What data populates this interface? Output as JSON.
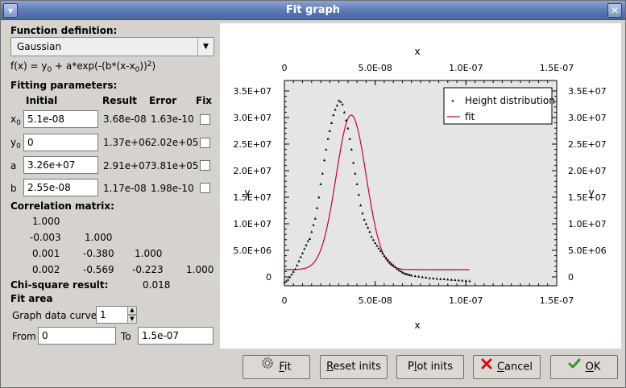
{
  "window": {
    "title": "Fit graph"
  },
  "function_definition": {
    "heading": "Function definition:",
    "selected": "Gaussian",
    "formula": {
      "prefix": "f(x) = y",
      "s1": "0",
      "mid": " + a*exp(-(b*(x-x",
      "s2": "0",
      "end": "))",
      "sup": "2",
      "close": ")"
    }
  },
  "fitting_parameters": {
    "heading": "Fitting parameters:",
    "columns": {
      "initial": "Initial",
      "result": "Result",
      "error": "Error",
      "fix": "Fix"
    },
    "rows": [
      {
        "name": "x",
        "sub": "0",
        "initial": "5.1e-08",
        "result": "3.68e-08",
        "error": "1.63e-10"
      },
      {
        "name": "y",
        "sub": "0",
        "initial": "0",
        "result": "1.37e+06",
        "error": "2.02e+05"
      },
      {
        "name": "a",
        "sub": "",
        "initial": "3.26e+07",
        "result": "2.91e+07",
        "error": "3.81e+05"
      },
      {
        "name": "b",
        "sub": "",
        "initial": "2.55e-08",
        "result": "1.17e-08",
        "error": "1.98e-10"
      }
    ]
  },
  "correlation": {
    "heading": "Correlation matrix:",
    "rows": [
      [
        "1.000"
      ],
      [
        "-0.003",
        "1.000"
      ],
      [
        "0.001",
        "-0.380",
        "1.000"
      ],
      [
        "0.002",
        "-0.569",
        "-0.223",
        "1.000"
      ]
    ]
  },
  "chisquare": {
    "label": "Chi-square result:",
    "value": "0.018"
  },
  "fit_area": {
    "heading": "Fit area",
    "curve_label": "Graph data curve",
    "curve_value": "1",
    "from_label": "From",
    "from_value": "0",
    "to_label": "To",
    "to_value": "1.5e-07"
  },
  "buttons": {
    "fit": {
      "u": "F",
      "rest": "it"
    },
    "reset": {
      "u": "R",
      "rest": "eset inits"
    },
    "plot": {
      "pre": "P",
      "u": "l",
      "rest": "ot inits"
    },
    "cancel": {
      "u": "C",
      "rest": "ancel"
    },
    "ok": {
      "u": "O",
      "rest": "K"
    }
  },
  "icons": {
    "fit": "gear-icon",
    "cancel": "red-x-icon",
    "ok": "green-check-icon"
  },
  "colors": {
    "fit_curve": "#cc0033",
    "plot_bg": "#e5e5e5",
    "titlebar": "#5a78b4"
  },
  "chart_data": {
    "type": "scatter",
    "xlabel": "x",
    "ylabel": "y",
    "xlim": [
      0,
      1.5e-07
    ],
    "ylim": [
      0,
      35000000.0
    ],
    "x_ticks": [
      "0",
      "5.0E-08",
      "1.0E-07",
      "1.5E-07"
    ],
    "y_ticks": [
      "0",
      "5.0E+06",
      "1.0E+07",
      "1.5E+07",
      "2.0E+07",
      "2.5E+07",
      "3.0E+07",
      "3.5E+07"
    ],
    "legend": {
      "position": "top-right",
      "entries": [
        "Height distribution",
        "fit"
      ]
    },
    "grid": false,
    "series": [
      {
        "name": "Height distribution",
        "mode": "points",
        "x": [
          0,
          1e-09,
          2e-09,
          3e-09,
          4e-09,
          5e-09,
          6e-09,
          7e-09,
          8e-09,
          9e-09,
          1e-08,
          1.1e-08,
          1.2e-08,
          1.3e-08,
          1.4e-08,
          1.5e-08,
          1.6e-08,
          1.7e-08,
          1.8e-08,
          1.9e-08,
          2e-08,
          2.1e-08,
          2.2e-08,
          2.3e-08,
          2.4e-08,
          2.5e-08,
          2.6e-08,
          2.7e-08,
          2.8e-08,
          2.9e-08,
          3e-08,
          3.1e-08,
          3.2e-08,
          3.3e-08,
          3.4e-08,
          3.5e-08,
          3.6e-08,
          3.7e-08,
          3.8e-08,
          3.9e-08,
          4e-08,
          4.1e-08,
          4.2e-08,
          4.3e-08,
          4.4e-08,
          4.5e-08,
          4.6e-08,
          4.7e-08,
          4.8e-08,
          4.9e-08,
          5e-08,
          5.1e-08,
          5.2e-08,
          5.3e-08,
          5.4e-08,
          5.5e-08,
          5.6e-08,
          5.7e-08,
          5.8e-08,
          5.9e-08,
          6e-08,
          6.1e-08,
          6.2e-08,
          6.3e-08,
          6.4e-08,
          6.5e-08,
          6.6e-08,
          6.7e-08,
          6.8e-08,
          6.9e-08,
          7e-08,
          7.2e-08,
          7.4e-08,
          7.6e-08,
          7.8e-08,
          8e-08,
          8.2e-08,
          8.4e-08,
          8.6e-08,
          8.8e-08,
          9e-08,
          9.2e-08,
          9.4e-08,
          9.6e-08,
          9.8e-08,
          1e-07,
          1.02e-07
        ],
        "y": [
          -1000000.0,
          -800000.0,
          -500000.0,
          0,
          500000.0,
          1000000.0,
          1500000.0,
          2200000.0,
          3000000.0,
          3800000.0,
          4500000.0,
          5300000.0,
          6000000.0,
          6800000.0,
          7200000.0,
          8500000.0,
          9800000.0,
          11000000.0,
          13000000.0,
          15000000.0,
          17500000.0,
          19500000.0,
          22000000.0,
          24000000.0,
          26000000.0,
          27500000.0,
          29000000.0,
          30500000.0,
          31500000.0,
          32300000.0,
          33200000.0,
          33000000.0,
          32500000.0,
          31000000.0,
          29500000.0,
          28000000.0,
          26000000.0,
          24000000.0,
          21500000.0,
          19500000.0,
          17500000.0,
          15500000.0,
          13500000.0,
          12000000.0,
          10800000.0,
          10000000.0,
          9300000.0,
          8500000.0,
          7600000.0,
          7000000.0,
          6400000.0,
          5900000.0,
          5400000.0,
          4900000.0,
          4500000.0,
          4000000.0,
          3600000.0,
          3200000.0,
          2800000.0,
          2500000.0,
          2200000.0,
          1900000.0,
          1600000.0,
          1300000.0,
          1100000.0,
          900000.0,
          700000.0,
          600000.0,
          500000.0,
          400000.0,
          300000.0,
          200000.0,
          100000.0,
          0,
          -100000.0,
          -200000.0,
          -250000.0,
          -300000.0,
          -350000.0,
          -400000.0,
          -450000.0,
          -500000.0,
          -550000.0,
          -600000.0,
          -650000.0,
          -700000.0,
          -750000.0
        ]
      },
      {
        "name": "fit",
        "mode": "line",
        "function": "gaussian",
        "x0": 3.68e-08,
        "y0": 1370000.0,
        "a": 29100000.0,
        "b": 1.17e-08,
        "x_range": [
          0,
          1.02e-07
        ]
      }
    ]
  }
}
